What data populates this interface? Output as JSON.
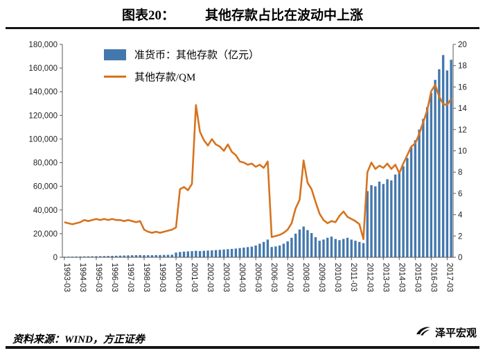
{
  "header": {
    "figure_label": "图表20：",
    "title": "其他存款占比在波动中上涨"
  },
  "footer": {
    "source": "资料来源：WIND，方正证券",
    "brand": "泽平宏观"
  },
  "chart_data": {
    "type": "combo",
    "title": "其他存款占比在波动中上涨",
    "grid": false,
    "legend_position": "top-left",
    "x": [
      "1993-03",
      "1993-06",
      "1993-09",
      "1993-12",
      "1994-03",
      "1994-06",
      "1994-09",
      "1994-12",
      "1995-03",
      "1995-06",
      "1995-09",
      "1995-12",
      "1996-03",
      "1996-06",
      "1996-09",
      "1996-12",
      "1997-03",
      "1997-06",
      "1997-09",
      "1997-12",
      "1998-03",
      "1998-06",
      "1998-09",
      "1998-12",
      "1999-03",
      "1999-06",
      "1999-09",
      "1999-12",
      "2000-03",
      "2000-06",
      "2000-09",
      "2000-12",
      "2001-03",
      "2001-06",
      "2001-09",
      "2001-12",
      "2002-03",
      "2002-06",
      "2002-09",
      "2002-12",
      "2003-03",
      "2003-06",
      "2003-09",
      "2003-12",
      "2004-03",
      "2004-06",
      "2004-09",
      "2004-12",
      "2005-03",
      "2005-06",
      "2005-09",
      "2005-12",
      "2006-03",
      "2006-06",
      "2006-09",
      "2006-12",
      "2007-03",
      "2007-06",
      "2007-09",
      "2007-12",
      "2008-03",
      "2008-06",
      "2008-09",
      "2008-12",
      "2009-03",
      "2009-06",
      "2009-09",
      "2009-12",
      "2010-03",
      "2010-06",
      "2010-09",
      "2010-12",
      "2011-03",
      "2011-06",
      "2011-09",
      "2011-12",
      "2012-03",
      "2012-06",
      "2012-09",
      "2012-12",
      "2013-03",
      "2013-06",
      "2013-09",
      "2013-12",
      "2014-03",
      "2014-06",
      "2014-09",
      "2014-12",
      "2015-03",
      "2015-06",
      "2015-09",
      "2015-12",
      "2016-03",
      "2016-06",
      "2016-09",
      "2016-12",
      "2017-03",
      "2017-06"
    ],
    "series": [
      {
        "name": "准货币：其他存款（亿元）",
        "type": "bar",
        "axis": "left",
        "color": "#4478ad",
        "values": [
          500,
          550,
          600,
          650,
          700,
          750,
          800,
          850,
          900,
          950,
          1000,
          1100,
          1200,
          1300,
          1400,
          1500,
          1600,
          1700,
          1800,
          1900,
          1800,
          1750,
          1800,
          1900,
          1900,
          2000,
          2100,
          2200,
          4000,
          4500,
          4800,
          5000,
          5200,
          5500,
          5300,
          5500,
          5700,
          5900,
          6100,
          6300,
          6600,
          6900,
          7100,
          7400,
          7800,
          8200,
          8600,
          9000,
          10000,
          11500,
          13000,
          15000,
          8700,
          9200,
          10000,
          11500,
          13500,
          16500,
          20000,
          23500,
          26000,
          23000,
          20500,
          17000,
          14000,
          15000,
          16500,
          17500,
          15500,
          14500,
          15500,
          16500,
          15000,
          14000,
          13000,
          12000,
          56000,
          61000,
          60000,
          64000,
          62000,
          66000,
          65000,
          70000,
          72000,
          77000,
          84000,
          93000,
          99000,
          108000,
          117000,
          127000,
          139000,
          150000,
          159000,
          171000,
          158000,
          167000
        ]
      },
      {
        "name": "其他存款/QM",
        "type": "line",
        "axis": "right",
        "color": "#d6731e",
        "values": [
          3.3,
          3.2,
          3.1,
          3.2,
          3.3,
          3.5,
          3.4,
          3.5,
          3.6,
          3.5,
          3.6,
          3.5,
          3.6,
          3.5,
          3.5,
          3.4,
          3.5,
          3.4,
          3.3,
          3.4,
          2.6,
          2.4,
          2.3,
          2.4,
          2.3,
          2.4,
          2.5,
          2.6,
          2.8,
          6.4,
          6.6,
          6.3,
          6.9,
          14.3,
          11.8,
          11.0,
          10.5,
          11.1,
          10.6,
          10.4,
          10.0,
          10.6,
          9.9,
          9.6,
          9.0,
          8.9,
          8.7,
          8.8,
          8.5,
          8.7,
          8.4,
          9.0,
          1.9,
          2.0,
          2.1,
          2.3,
          2.6,
          3.2,
          4.6,
          5.4,
          9.1,
          7.0,
          6.4,
          5.2,
          4.1,
          3.5,
          3.2,
          3.4,
          3.3,
          3.9,
          4.3,
          3.8,
          3.6,
          3.4,
          3.1,
          1.7,
          8.0,
          8.9,
          8.3,
          8.6,
          8.4,
          8.8,
          8.3,
          8.7,
          7.9,
          8.8,
          9.6,
          10.4,
          10.7,
          11.6,
          12.7,
          13.8,
          15.6,
          16.2,
          15.1,
          14.4,
          14.3,
          14.9
        ]
      }
    ],
    "y_left": {
      "min": 0,
      "max": 180000,
      "ticks": [
        "0",
        "20,000",
        "40,000",
        "60,000",
        "80,000",
        "100,000",
        "120,000",
        "140,000",
        "160,000",
        "180,000"
      ]
    },
    "y_right": {
      "min": 0,
      "max": 20,
      "ticks": [
        "0",
        "2",
        "4",
        "6",
        "8",
        "10",
        "12",
        "14",
        "16",
        "18",
        "20"
      ]
    },
    "x_tick_labels": [
      "1993-03",
      "1994-03",
      "1995-03",
      "1996-03",
      "1997-03",
      "1998-03",
      "1999-03",
      "2000-03",
      "2001-03",
      "2002-03",
      "2003-03",
      "2004-03",
      "2005-03",
      "2006-03",
      "2007-03",
      "2008-03",
      "2009-03",
      "2010-03",
      "2011-03",
      "2012-03",
      "2013-03",
      "2014-03",
      "2015-03",
      "2016-03",
      "2017-03"
    ]
  }
}
